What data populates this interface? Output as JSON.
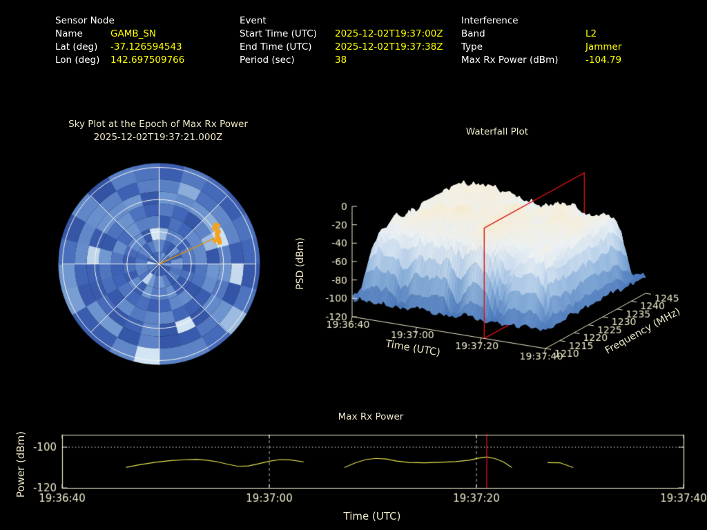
{
  "colors": {
    "background": "#000000",
    "label_white": "#ffffff",
    "value_yellow": "#ffff00",
    "axis_cream": "#eee8c8",
    "curve_yellow": "#e6e14e",
    "marker_red": "#dd1111",
    "track_orange": "#f5a31e",
    "grid_white": "#fbfbf0"
  },
  "header": {
    "sensor_node": {
      "title": "Sensor Node",
      "rows": [
        {
          "label": "Name",
          "value": "GAMB_SN"
        },
        {
          "label": "Lat (deg)",
          "value": "-37.126594543"
        },
        {
          "label": "Lon (deg)",
          "value": "142.697509766"
        }
      ]
    },
    "event": {
      "title": "Event",
      "rows": [
        {
          "label": "Start Time (UTC)",
          "value": "2025-12-02T19:37:00Z"
        },
        {
          "label": "End Time (UTC)",
          "value": "2025-12-02T19:37:38Z"
        },
        {
          "label": "Period (sec)",
          "value": "38"
        }
      ]
    },
    "interference": {
      "title": "Interference",
      "rows": [
        {
          "label": "Band",
          "value": "L2"
        },
        {
          "label": "Type",
          "value": "Jammer"
        },
        {
          "label": "Max Rx Power (dBm)",
          "value": "-104.79"
        }
      ]
    }
  },
  "sky_plot": {
    "title_line1": "Sky Plot at the Epoch of Max Rx Power",
    "title_line2": "2025-12-02T19:37:21.000Z"
  },
  "waterfall": {
    "title": "Waterfall Plot",
    "xlabel": "Time (UTC)",
    "ylabel": "Frequency (MHz)",
    "zlabel": "PSD (dBm)"
  },
  "power_plot": {
    "title": "Max Rx Power",
    "xlabel": "Time (UTC)",
    "ylabel": "Power (dBm)"
  },
  "chart_data": [
    {
      "id": "sky_plot",
      "type": "heatmap",
      "projection": "polar_sky",
      "title": "Sky Plot at the Epoch of Max Rx Power 2025-12-02T19:37:21.000Z",
      "elevation_rings_deg": [
        0,
        30,
        60
      ],
      "azimuth_spokes_deg": [
        0,
        45,
        90,
        135,
        180,
        225,
        270,
        315
      ],
      "interferer_track": {
        "azimuth_deg": 65,
        "elevation_deg": 31,
        "color": "#f5a31e"
      },
      "mesh": {
        "azimuth_bins": 24,
        "elevation_bins": 8,
        "palette_low": "#27418f",
        "palette_high": "#dcebf7",
        "values": "pseudo_random_power",
        "seed": 7
      }
    },
    {
      "id": "waterfall",
      "type": "surface_3d",
      "title": "Waterfall Plot",
      "xlabel": "Time (UTC)",
      "ylabel": "Frequency (MHz)",
      "zlabel": "PSD (dBm)",
      "time_ticks": [
        {
          "sec": 0,
          "label": "19:36:40"
        },
        {
          "sec": 20,
          "label": "19:37:00"
        },
        {
          "sec": 40,
          "label": "19:37:20"
        },
        {
          "sec": 60,
          "label": "19:37:40"
        }
      ],
      "freq_ticks": [
        1210,
        1215,
        1220,
        1225,
        1230,
        1235,
        1240,
        1245
      ],
      "freq_range_mhz": [
        1210,
        1245
      ],
      "psd_ticks": [
        0,
        -20,
        -40,
        -60,
        -80,
        -100,
        -120
      ],
      "psd_range_dbm": [
        -120,
        0
      ],
      "plateau_psd_dbm": -22,
      "noise_floor_dbm": -100,
      "epoch_marker": {
        "time": "19:37:21",
        "sec": 41,
        "color": "#dd1111"
      },
      "seed": 11
    },
    {
      "id": "max_rx_power",
      "type": "line",
      "title": "Max Rx Power",
      "xlabel": "Time (UTC)",
      "ylabel": "Power (dBm)",
      "x_ticks": [
        {
          "sec": 0,
          "label": "19:36:40"
        },
        {
          "sec": 20,
          "label": "19:37:00"
        },
        {
          "sec": 40,
          "label": "19:37:20"
        },
        {
          "sec": 60,
          "label": "19:37:40"
        }
      ],
      "y_ticks": [
        -100,
        -120
      ],
      "ylim": [
        -93.9,
        -120
      ],
      "xlim_sec": [
        0,
        60
      ],
      "threshold_line_dbm": -100,
      "grid_sec": [
        20,
        40
      ],
      "max_marker": {
        "sec": 41,
        "power_dbm": -104.79,
        "color": "#dd1111"
      },
      "line_color": "#e6e14e",
      "segments": [
        [
          [
            6.2,
            -109.9
          ],
          [
            7.5,
            -108.6
          ],
          [
            9,
            -107.4
          ],
          [
            10.5,
            -106.6
          ],
          [
            12,
            -106.1
          ],
          [
            13,
            -106.0
          ],
          [
            14,
            -106.4
          ],
          [
            15,
            -107.2
          ],
          [
            16,
            -108.4
          ],
          [
            17,
            -109.4
          ],
          [
            18,
            -109.2
          ],
          [
            19,
            -108.1
          ],
          [
            20,
            -106.9
          ],
          [
            21,
            -106.1
          ],
          [
            22,
            -106.2
          ],
          [
            23.3,
            -107.2
          ]
        ],
        [
          [
            27.3,
            -109.9
          ],
          [
            28.3,
            -107.7
          ],
          [
            29.3,
            -106.1
          ],
          [
            30.3,
            -105.5
          ],
          [
            31.3,
            -105.8
          ],
          [
            32.3,
            -106.8
          ],
          [
            33.5,
            -107.5
          ],
          [
            35,
            -107.7
          ],
          [
            36.5,
            -107.4
          ],
          [
            38,
            -107.1
          ],
          [
            39.3,
            -106.4
          ],
          [
            40.3,
            -105.3
          ],
          [
            41,
            -104.79
          ],
          [
            41.8,
            -105.6
          ],
          [
            42.6,
            -107.2
          ],
          [
            43.4,
            -109.9
          ]
        ],
        [
          [
            46.9,
            -107.6
          ],
          [
            48.1,
            -107.7
          ],
          [
            49.3,
            -109.9
          ]
        ]
      ]
    }
  ]
}
